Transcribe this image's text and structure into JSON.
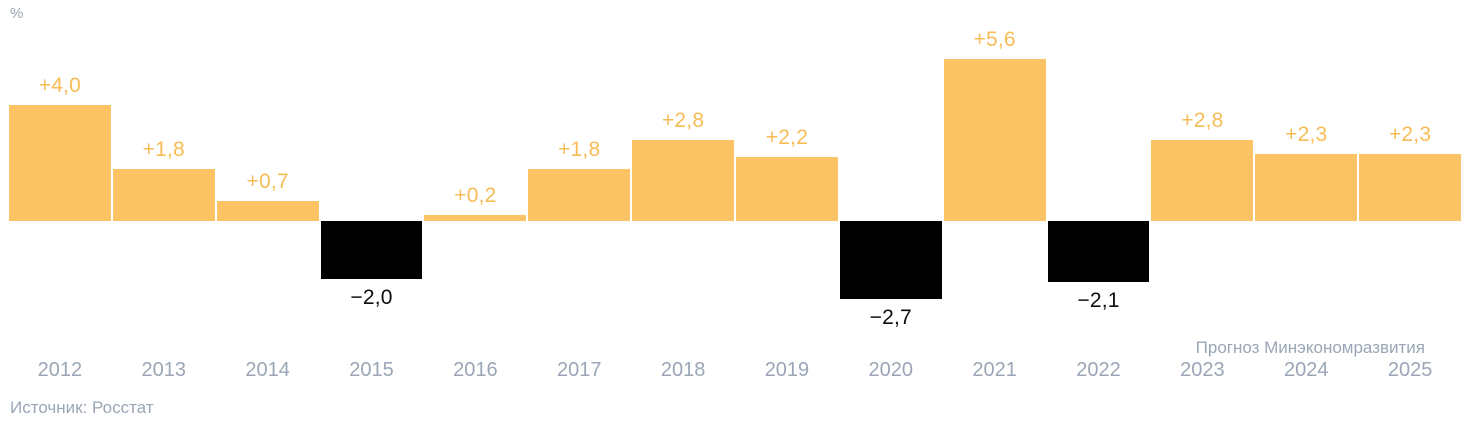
{
  "chart": {
    "unit_label": "%",
    "source": "Источник: Росстат",
    "forecast_note": "Прогноз Минэкономразвития",
    "colors": {
      "positive_bar": "#FBC364",
      "negative_bar": "#000000",
      "positive_value_label": "#F8BC57",
      "negative_value_label": "#0d0d0d",
      "axis_text": "#9AA6B6"
    }
  },
  "chart_data": {
    "type": "bar",
    "title": "",
    "xlabel": "",
    "ylabel": "%",
    "ylim": [
      -3.5,
      6.5
    ],
    "grid": false,
    "legend": false,
    "categories": [
      "2012",
      "2013",
      "2014",
      "2015",
      "2016",
      "2017",
      "2018",
      "2019",
      "2020",
      "2021",
      "2022",
      "2023",
      "2024",
      "2025"
    ],
    "values": [
      4.0,
      1.8,
      0.7,
      -2.0,
      0.2,
      1.8,
      2.8,
      2.2,
      -2.7,
      5.6,
      -2.1,
      2.8,
      2.3,
      2.3
    ],
    "value_labels": [
      "+4,0",
      "+1,8",
      "+0,7",
      "−2,0",
      "+0,2",
      "+1,8",
      "+2,8",
      "+2,2",
      "−2,7",
      "+5,6",
      "−2,1",
      "+2,8",
      "+2,3",
      "+2,3"
    ],
    "forecast_categories": [
      "2023",
      "2024",
      "2025"
    ],
    "source": "Источник: Росстат",
    "annotation": "Прогноз Минэкономразвития"
  }
}
